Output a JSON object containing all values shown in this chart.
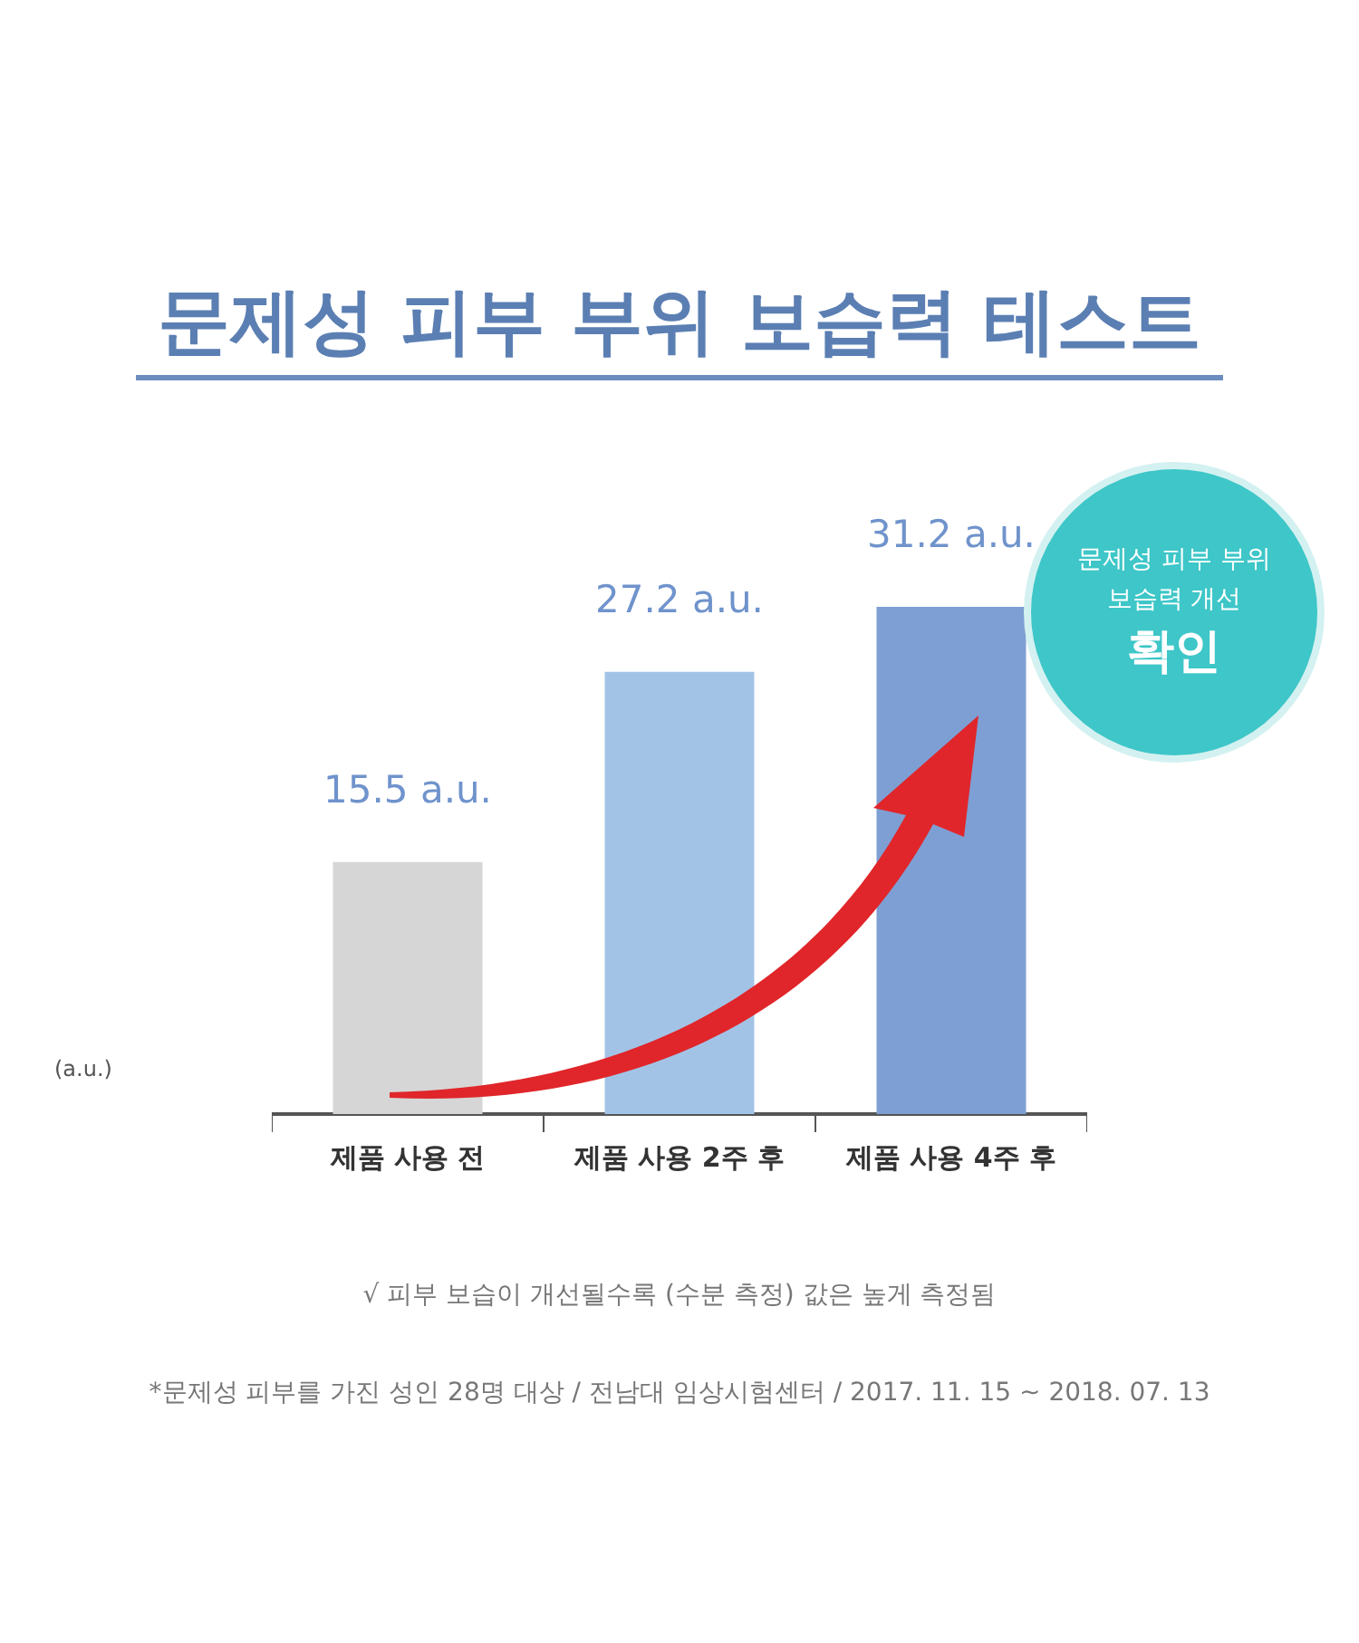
{
  "chart_data": {
    "type": "bar",
    "title": "문제성 피부 부위 보습력 테스트",
    "categories": [
      "제품 사용 전",
      "제품 사용 2주 후",
      "제품 사용 4주 후"
    ],
    "values": [
      15.5,
      27.2,
      31.2
    ],
    "value_labels": [
      "15.5 a.u.",
      "27.2 a.u.",
      "31.2 a.u."
    ],
    "colors": [
      "#d6d6d6",
      "#a3c3e6",
      "#7e9fd3"
    ],
    "annotations": [
      "문제성 피부 부위\n보습력 개선\n확인",
      "√ 피부 보습이 개선될수록 (수분 측정) 값은 높게 측정됨",
      "*문제성 피부를 가진 성인 28명 대상 / 전남대 임상시험센터 / 2017. 11. 15 ~ 2018. 07. 13",
      "(a.u.)"
    ],
    "grid": false,
    "legend": false
  }
}
